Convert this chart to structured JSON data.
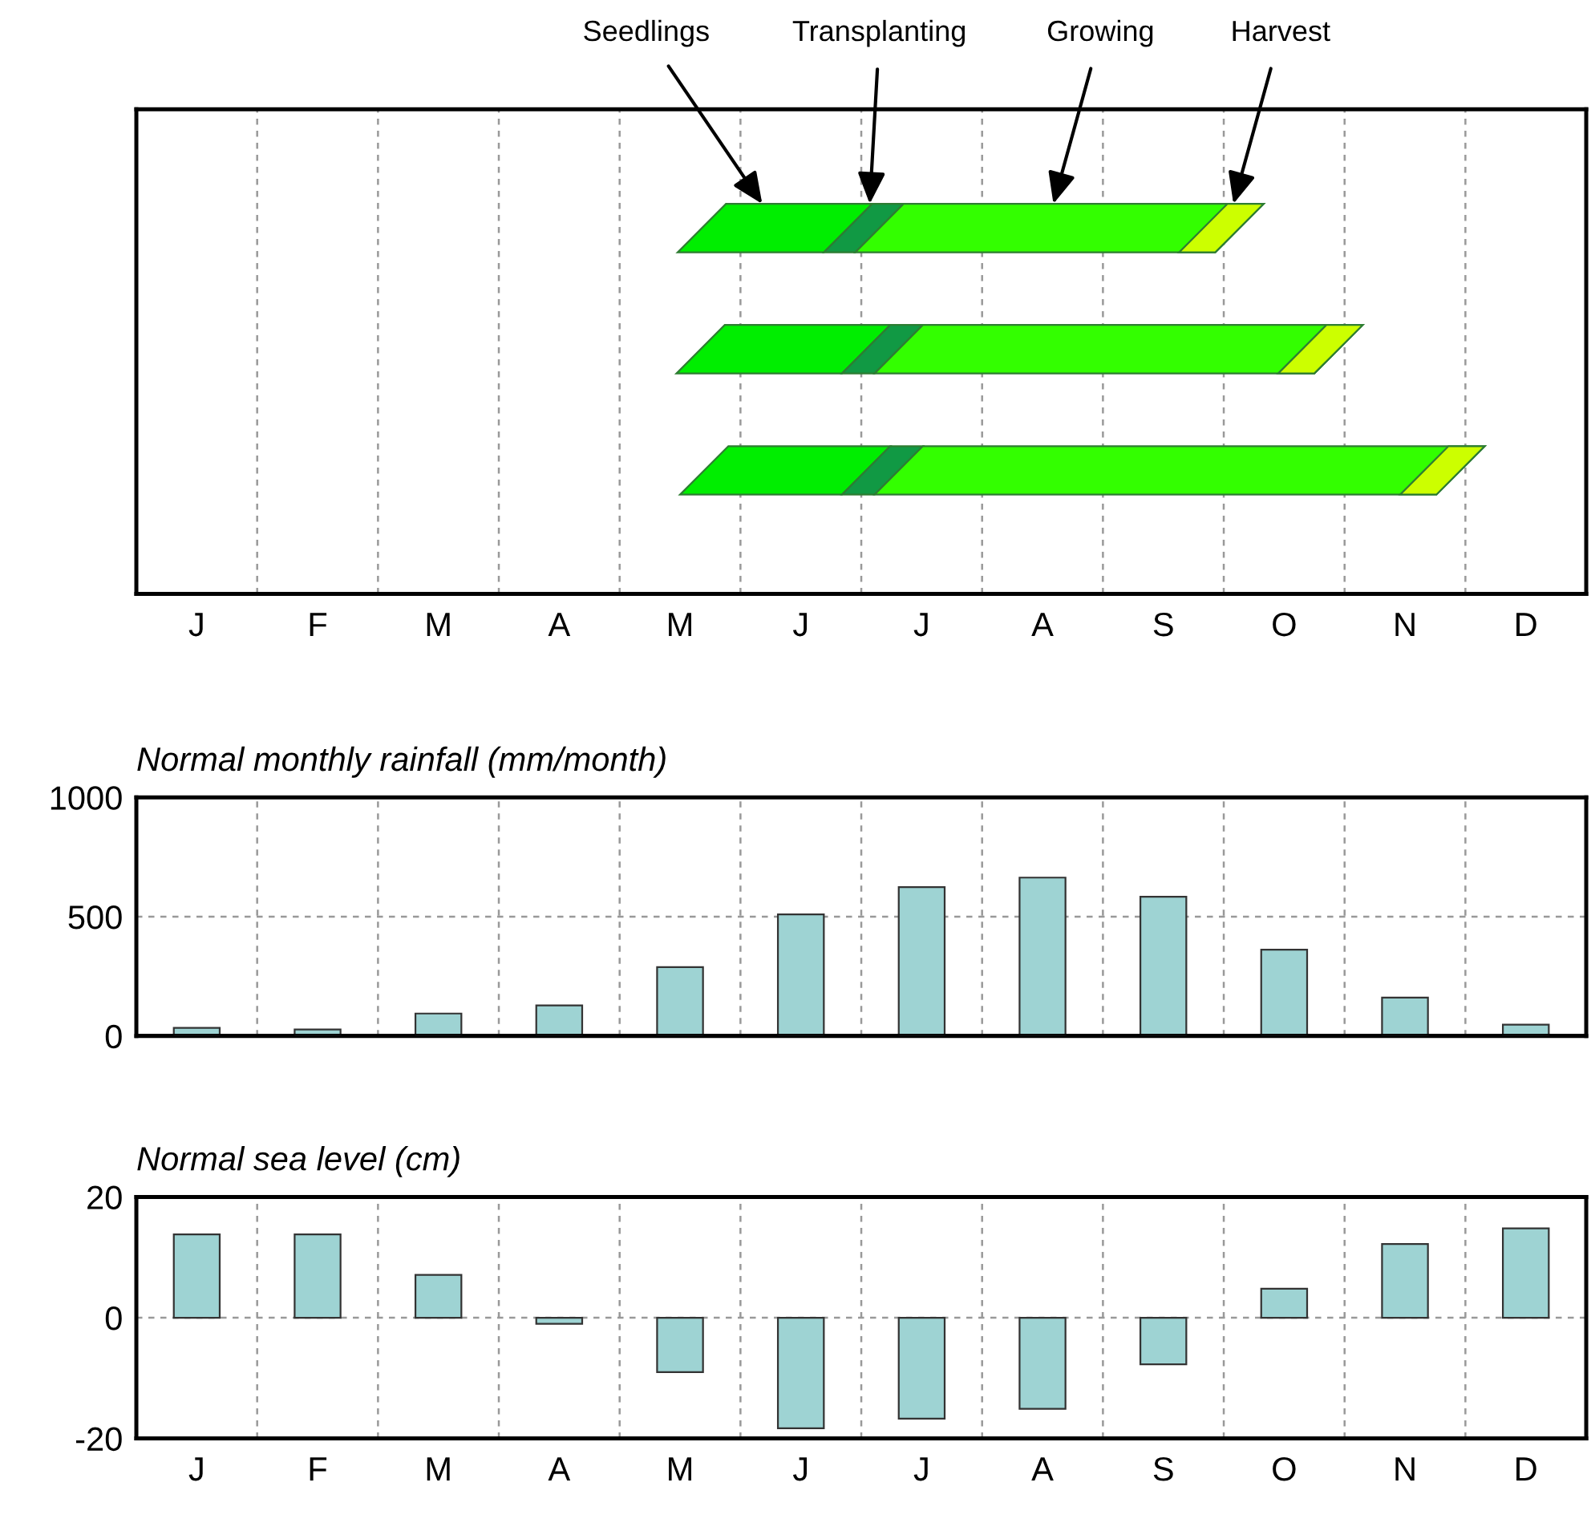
{
  "chart_data": [
    {
      "type": "other",
      "categories": [
        "J",
        "F",
        "M",
        "A",
        "M",
        "J",
        "J",
        "A",
        "S",
        "O",
        "N",
        "D"
      ],
      "annotations": [
        "Seedlings",
        "Transplanting",
        "Growing",
        "Harvest"
      ]
    },
    {
      "type": "bar",
      "title": "Normal monthly rainfall (mm/month)",
      "categories": [
        null,
        null,
        null,
        null,
        null,
        null,
        null,
        null,
        null,
        null,
        null,
        null
      ],
      "values": [
        34,
        27,
        94,
        128,
        289,
        510,
        624,
        664,
        584,
        362,
        161,
        47
      ],
      "color": "#9ed3d3",
      "ylim": [
        0,
        1000
      ],
      "yticks": [
        0,
        500,
        1000
      ],
      "grid": true,
      "tick_labels": "y"
    },
    {
      "type": "bar",
      "title": "Normal sea level (cm)",
      "categories": [
        "J",
        "F",
        "M",
        "A",
        "M",
        "J",
        "J",
        "A",
        "S",
        "O",
        "N",
        "D"
      ],
      "values": [
        13.8,
        13.8,
        7.1,
        -1,
        -9,
        -18.3,
        -16.7,
        -15.1,
        -7.7,
        4.8,
        12.2,
        14.8
      ],
      "color": "#9ed3d3",
      "ylim": [
        -20,
        20
      ],
      "yticks": [
        -20,
        0,
        20
      ],
      "grid": true
    }
  ]
}
